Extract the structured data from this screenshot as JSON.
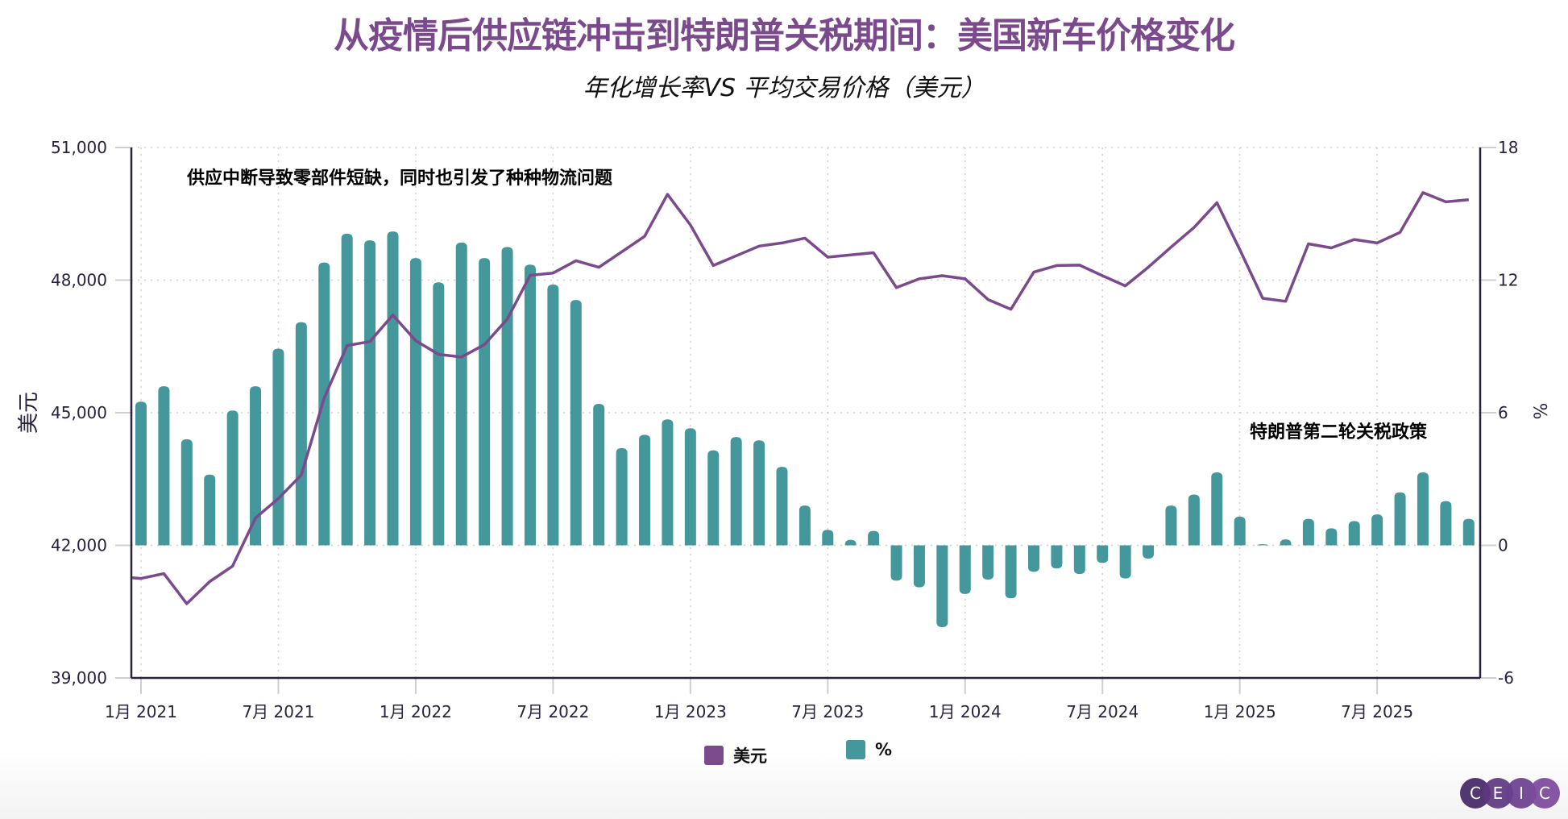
{
  "title": "从疫情后供应链冲击到特朗普关税期间：美国新车价格变化",
  "subtitle": "年化增长率VS 平均交易价格（美元）",
  "logo": {
    "letters": [
      "C",
      "E",
      "I",
      "C"
    ],
    "colors": [
      "#4a2d6b",
      "#5e3880",
      "#6b3f8f",
      "#7c4a9c"
    ]
  },
  "legend": [
    {
      "label": "美元",
      "color": "#7b4a8c"
    },
    {
      "label": "%",
      "color": "#44979a"
    }
  ],
  "chart_data": {
    "type": "bar+line",
    "title": "从疫情后供应链冲击到特朗普关税期间：美国新车价格变化",
    "subtitle": "年化增长率VS 平均交易价格（美元）",
    "ylabel_left": "美元",
    "ylabel_right": "%",
    "ylim_left": [
      39000,
      51000
    ],
    "ylim_right": [
      -6,
      18
    ],
    "yticks_left": [
      "39,000",
      "42,000",
      "45,000",
      "48,000",
      "51,000"
    ],
    "yticks_left_values": [
      39000,
      42000,
      45000,
      48000,
      51000
    ],
    "yticks_right": [
      "-6",
      "0",
      "6",
      "12",
      "18"
    ],
    "yticks_right_values": [
      -6,
      0,
      6,
      12,
      18
    ],
    "xticks": [
      {
        "label": "1月 2021",
        "month": "2021-01"
      },
      {
        "label": "7月 2021",
        "month": "2021-07"
      },
      {
        "label": "1月 2022",
        "month": "2022-01"
      },
      {
        "label": "7月 2022",
        "month": "2022-07"
      },
      {
        "label": "1月 2023",
        "month": "2023-01"
      },
      {
        "label": "7月 2023",
        "month": "2023-07"
      },
      {
        "label": "1月 2024",
        "month": "2024-01"
      },
      {
        "label": "7月 2024",
        "month": "2024-07"
      },
      {
        "label": "1月 2025",
        "month": "2025-01"
      },
      {
        "label": "7月 2025",
        "month": "2025-07"
      }
    ],
    "grid": true,
    "legend_position": "bottom-center",
    "annotations": [
      {
        "text": "供应中断导致零部件短缺，同时也引发了种种物流问题",
        "near": "2021-02 / top"
      },
      {
        "text": "特朗普第二轮关税政策",
        "near": "2025-01 / 5%"
      }
    ],
    "series": [
      {
        "name": "美元",
        "type": "line",
        "axis": "left",
        "color": "#7b4a8c",
        "x": [
          "2020-12",
          "2021-01",
          "2021-02",
          "2021-03",
          "2021-04",
          "2021-05",
          "2021-06",
          "2021-07",
          "2021-08",
          "2021-09",
          "2021-10",
          "2021-11",
          "2021-12",
          "2022-01",
          "2022-02",
          "2022-03",
          "2022-04",
          "2022-05",
          "2022-06",
          "2022-07",
          "2022-08",
          "2022-09",
          "2022-10",
          "2022-11",
          "2022-12",
          "2023-01",
          "2023-02",
          "2023-03",
          "2023-04",
          "2023-05",
          "2023-06",
          "2023-07",
          "2023-08",
          "2023-09",
          "2023-10",
          "2023-11",
          "2023-12",
          "2024-01",
          "2024-02",
          "2024-03",
          "2024-04",
          "2024-05",
          "2024-06",
          "2024-07",
          "2024-08",
          "2024-09",
          "2024-10",
          "2024-11",
          "2024-12",
          "2025-01",
          "2025-02",
          "2025-03",
          "2025-04",
          "2025-05",
          "2025-06",
          "2025-07",
          "2025-08",
          "2025-09",
          "2025-10",
          "2025-11"
        ],
        "values": [
          41290,
          41250,
          41360,
          40680,
          41180,
          41530,
          42620,
          43060,
          43590,
          45330,
          46520,
          46610,
          47210,
          46630,
          46320,
          46260,
          46540,
          47120,
          48110,
          48160,
          48440,
          48290,
          48640,
          48990,
          49940,
          49250,
          48330,
          48550,
          48770,
          48840,
          48950,
          48520,
          48570,
          48620,
          47830,
          48030,
          48100,
          48030,
          47560,
          47340,
          48180,
          48330,
          48340,
          48100,
          47870,
          48290,
          48750,
          49190,
          49750,
          48690,
          47590,
          47520,
          48820,
          48730,
          48920,
          48840,
          49080,
          49980,
          49770,
          49820
        ]
      },
      {
        "name": "%",
        "type": "bar",
        "axis": "right",
        "color": "#44979a",
        "x": [
          "2021-01",
          "2021-02",
          "2021-03",
          "2021-04",
          "2021-05",
          "2021-06",
          "2021-07",
          "2021-08",
          "2021-09",
          "2021-10",
          "2021-11",
          "2021-12",
          "2022-01",
          "2022-02",
          "2022-03",
          "2022-04",
          "2022-05",
          "2022-06",
          "2022-07",
          "2022-08",
          "2022-09",
          "2022-10",
          "2022-11",
          "2022-12",
          "2023-01",
          "2023-02",
          "2023-03",
          "2023-04",
          "2023-05",
          "2023-06",
          "2023-07",
          "2023-08",
          "2023-09",
          "2023-10",
          "2023-11",
          "2023-12",
          "2024-01",
          "2024-02",
          "2024-03",
          "2024-04",
          "2024-05",
          "2024-06",
          "2024-07",
          "2024-08",
          "2024-09",
          "2024-10",
          "2024-11",
          "2024-12",
          "2025-01",
          "2025-02",
          "2025-03",
          "2025-04",
          "2025-05",
          "2025-06",
          "2025-07",
          "2025-08",
          "2025-09",
          "2025-10",
          "2025-11"
        ],
        "values": [
          6.5,
          7.2,
          4.8,
          3.2,
          6.1,
          7.2,
          8.9,
          10.1,
          12.8,
          14.1,
          13.8,
          14.2,
          13.0,
          11.9,
          13.7,
          13.0,
          13.5,
          12.7,
          11.8,
          11.1,
          6.4,
          4.4,
          5.0,
          5.7,
          5.3,
          4.3,
          4.9,
          4.75,
          3.55,
          1.8,
          0.7,
          0.25,
          0.65,
          -1.6,
          -1.9,
          -3.7,
          -2.2,
          -1.55,
          -2.4,
          -1.2,
          -1.05,
          -1.3,
          -0.8,
          -1.5,
          -0.6,
          1.8,
          2.3,
          3.3,
          1.3,
          0.05,
          0.27,
          1.2,
          0.77,
          1.1,
          1.4,
          2.4,
          3.3,
          2.0,
          1.2
        ]
      }
    ]
  }
}
